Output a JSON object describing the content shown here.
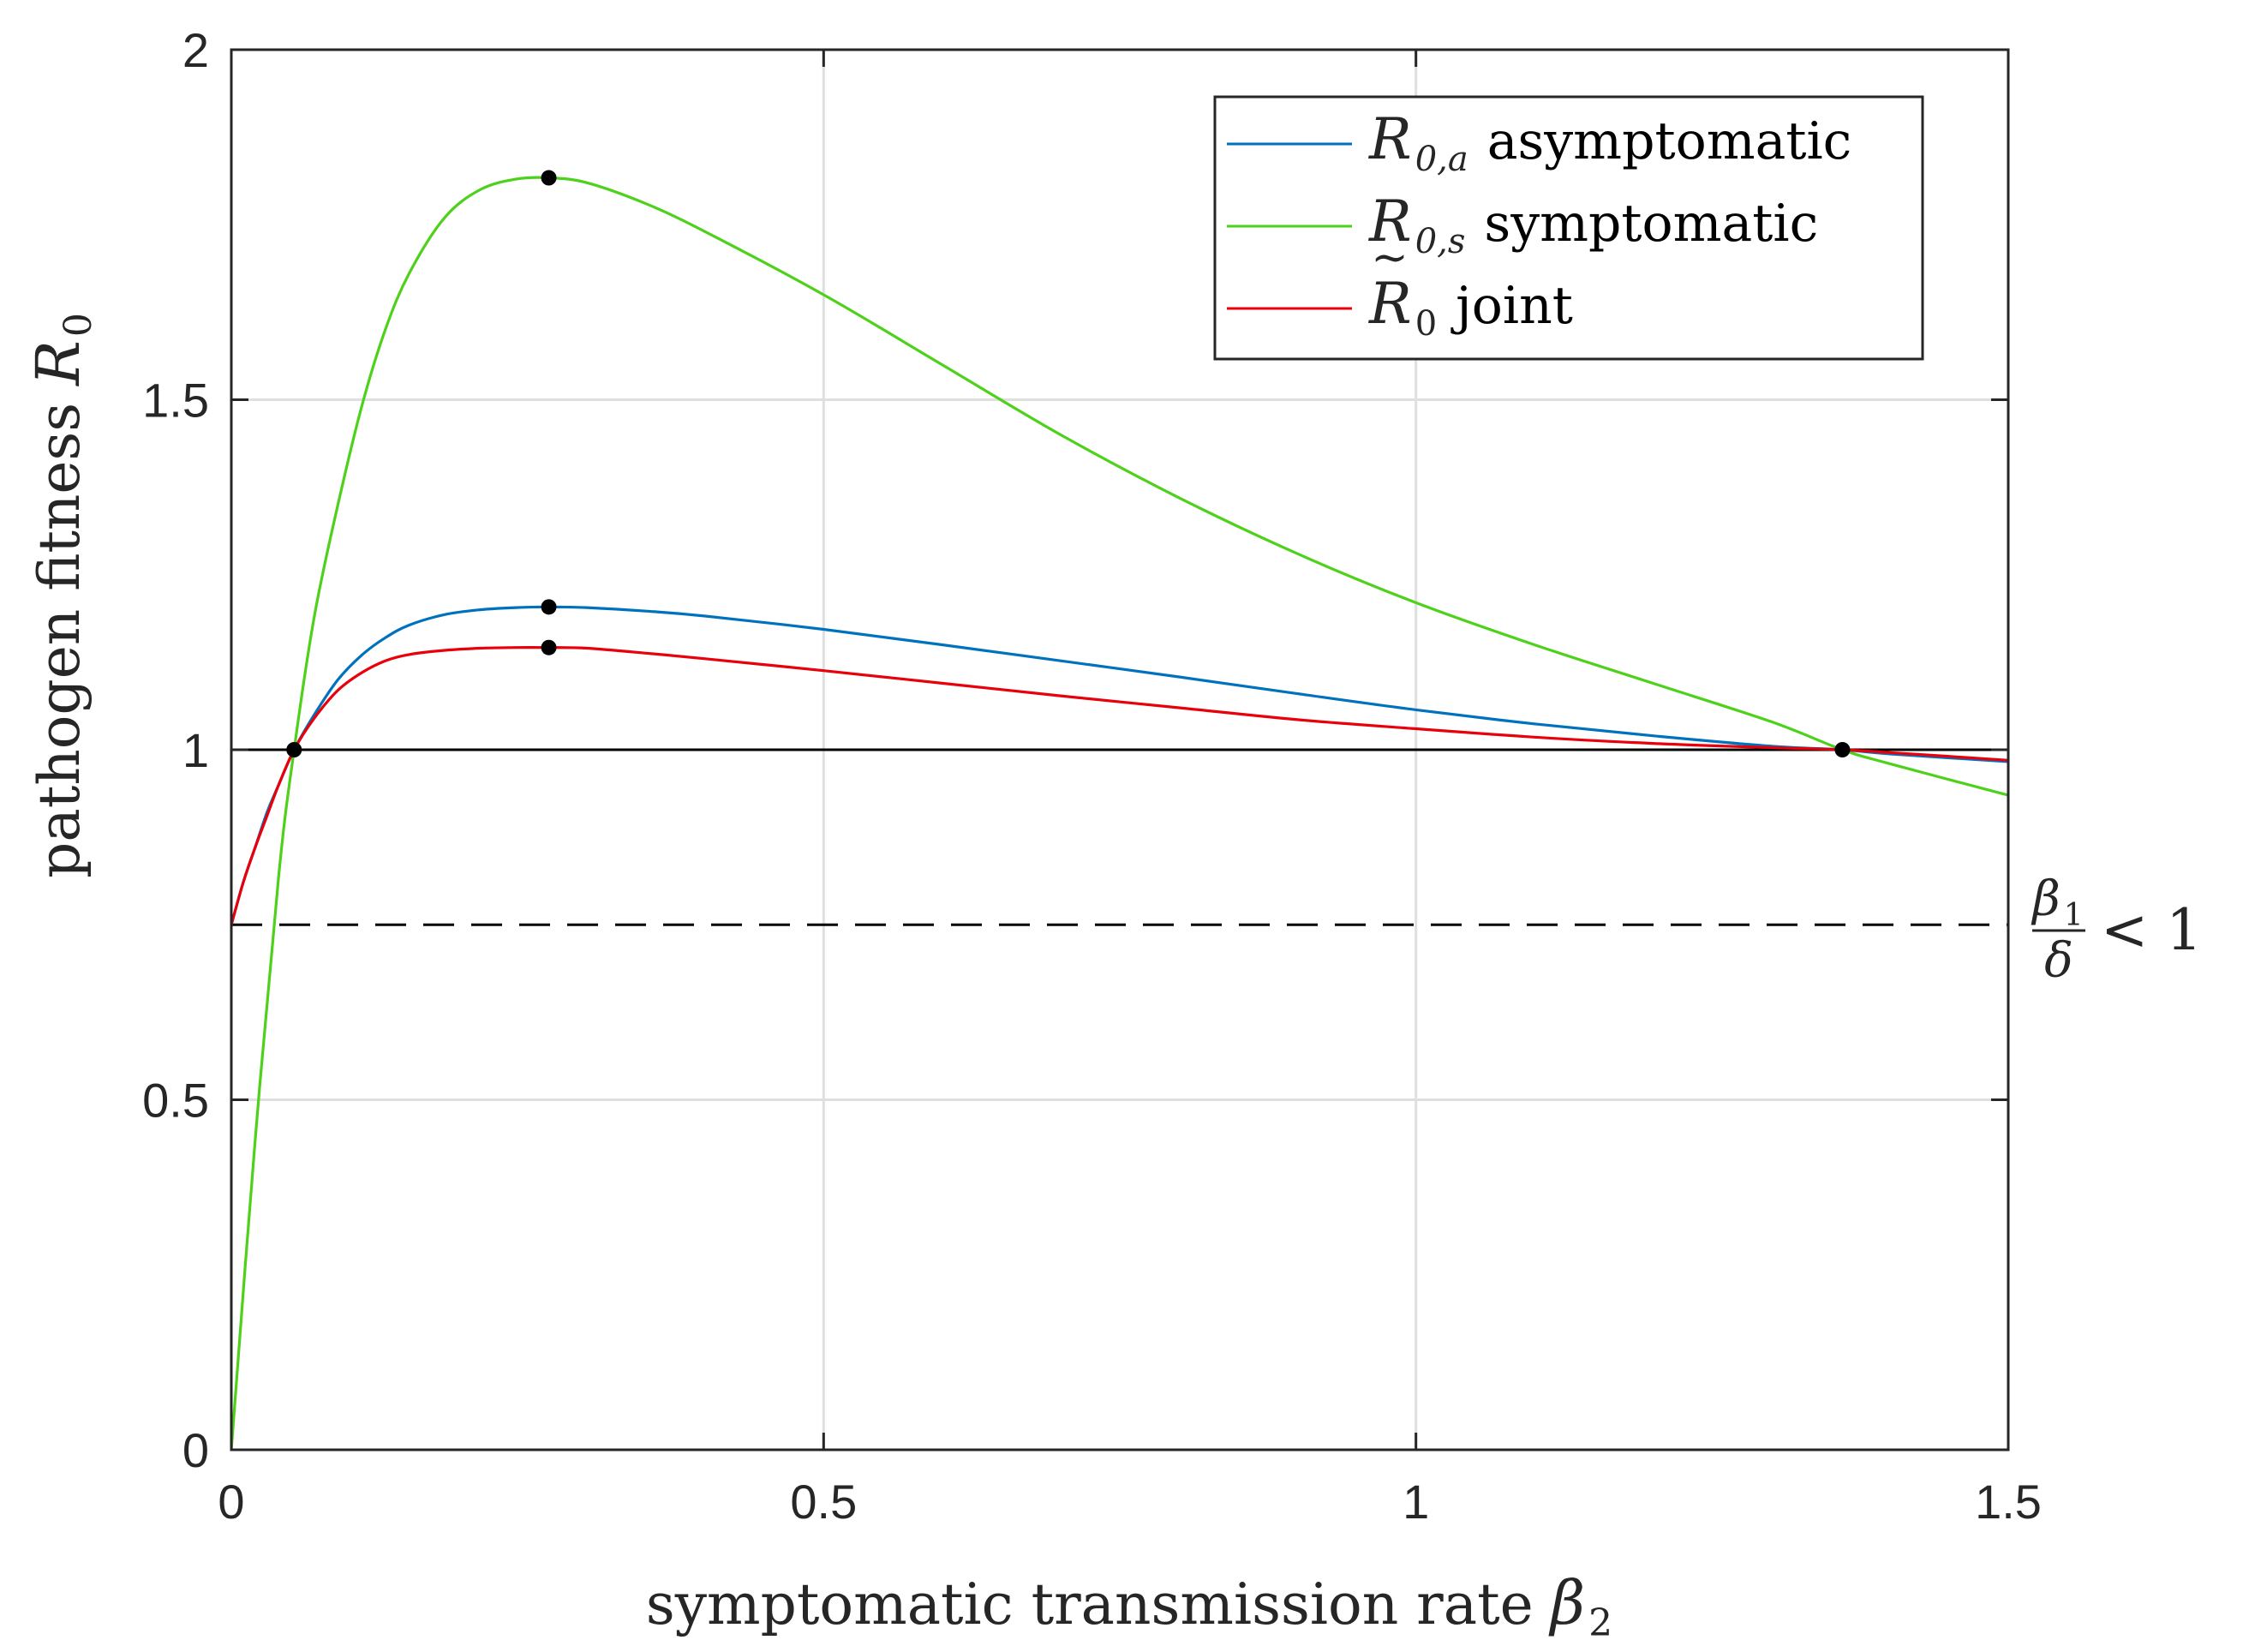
{
  "chart_data": {
    "type": "line",
    "xlabel": "symptomatic transmission rate",
    "xlabel_symbol": "β",
    "xlabel_sub": "2",
    "ylabel": "pathogen fitness",
    "ylabel_symbol": "R",
    "ylabel_sub": "0",
    "xlim": [
      0,
      1.5
    ],
    "ylim": [
      0,
      2
    ],
    "xticks": [
      0,
      0.5,
      1,
      1.5
    ],
    "xtick_labels": [
      "0",
      "0.5",
      "1",
      "1.5"
    ],
    "yticks": [
      0,
      0.5,
      1,
      1.5,
      2
    ],
    "ytick_labels": [
      "0",
      "0.5",
      "1",
      "1.5",
      "2"
    ],
    "grid": true,
    "legend_position": "top-right",
    "series": [
      {
        "name": "asymptomatic",
        "symbol": "R",
        "sub": "0,a",
        "color": "#0072BD",
        "x": [
          0,
          0.01,
          0.02,
          0.03,
          0.04,
          0.053,
          0.07,
          0.09,
          0.11,
          0.13,
          0.15,
          0.18,
          0.21,
          0.24,
          0.268,
          0.3,
          0.35,
          0.4,
          0.5,
          0.6,
          0.7,
          0.8,
          0.9,
          1.0,
          1.1,
          1.2,
          1.3,
          1.36,
          1.4,
          1.5
        ],
        "y": [
          0.75,
          0.81,
          0.86,
          0.91,
          0.95,
          1.0,
          1.05,
          1.1,
          1.135,
          1.16,
          1.178,
          1.193,
          1.2,
          1.203,
          1.204,
          1.203,
          1.198,
          1.191,
          1.172,
          1.15,
          1.127,
          1.104,
          1.08,
          1.057,
          1.037,
          1.02,
          1.005,
          1.0,
          0.994,
          0.983
        ]
      },
      {
        "name": "symptomatic",
        "symbol": "R",
        "sub": "0,s",
        "color": "#4DD11A",
        "x": [
          0,
          0.02,
          0.04,
          0.053,
          0.07,
          0.09,
          0.11,
          0.13,
          0.15,
          0.18,
          0.21,
          0.24,
          0.268,
          0.3,
          0.35,
          0.4,
          0.5,
          0.6,
          0.7,
          0.8,
          0.9,
          1.0,
          1.1,
          1.2,
          1.3,
          1.36,
          1.4,
          1.5
        ],
        "y": [
          0,
          0.44,
          0.82,
          1.0,
          1.19,
          1.35,
          1.49,
          1.6,
          1.68,
          1.76,
          1.8,
          1.815,
          1.817,
          1.81,
          1.78,
          1.74,
          1.65,
          1.55,
          1.45,
          1.36,
          1.28,
          1.21,
          1.15,
          1.095,
          1.04,
          1.0,
          0.98,
          0.935
        ]
      },
      {
        "name": "joint",
        "symbol": "R",
        "sub": "0",
        "tilde": true,
        "color": "#E8000B",
        "x": [
          0,
          0.01,
          0.02,
          0.03,
          0.04,
          0.053,
          0.07,
          0.09,
          0.11,
          0.13,
          0.15,
          0.18,
          0.21,
          0.24,
          0.268,
          0.3,
          0.35,
          0.4,
          0.5,
          0.6,
          0.7,
          0.8,
          0.9,
          1.0,
          1.1,
          1.2,
          1.3,
          1.36,
          1.4,
          1.5
        ],
        "y": [
          0.75,
          0.81,
          0.86,
          0.905,
          0.95,
          1.0,
          1.045,
          1.085,
          1.11,
          1.127,
          1.136,
          1.142,
          1.145,
          1.146,
          1.146,
          1.145,
          1.138,
          1.13,
          1.113,
          1.095,
          1.077,
          1.06,
          1.043,
          1.03,
          1.018,
          1.009,
          1.003,
          1.0,
          0.996,
          0.985
        ]
      }
    ],
    "reference_lines": [
      {
        "y": 1,
        "style": "solid",
        "color": "#000000"
      },
      {
        "y": 0.75,
        "style": "dashed",
        "color": "#000000"
      }
    ],
    "points": [
      {
        "x": 0.268,
        "y": 1.817
      },
      {
        "x": 0.268,
        "y": 1.204
      },
      {
        "x": 0.268,
        "y": 1.146
      },
      {
        "x": 0.053,
        "y": 1.0
      },
      {
        "x": 1.36,
        "y": 1.0
      }
    ],
    "annotation": {
      "numerator_symbol": "β",
      "numerator_sub": "1",
      "denominator_symbol": "δ",
      "relation": "< 1"
    }
  }
}
